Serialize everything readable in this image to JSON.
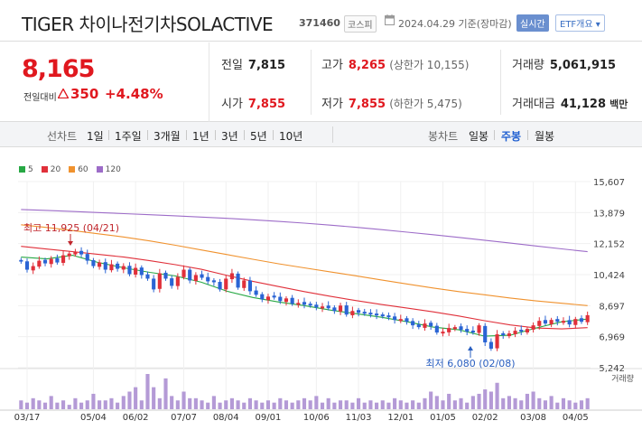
{
  "header": {
    "title": "TIGER 차이나전기차SOLACTIVE",
    "code": "371460",
    "market_badge": "코스피",
    "date_text": "2024.04.29 기준(장마감)",
    "realtime_button": "실시간",
    "etf_button": "ETF개요 ▾"
  },
  "price": {
    "current": "8,165",
    "change_label": "전일대비",
    "change_value": "350",
    "change_pct": "+4.48%"
  },
  "stats": {
    "prev_close": {
      "label": "전일",
      "value": "7,815"
    },
    "open": {
      "label": "시가",
      "value": "7,855"
    },
    "high": {
      "label": "고가",
      "value": "8,265",
      "sub": "(상한가 10,155)"
    },
    "low": {
      "label": "저가",
      "value": "7,855",
      "sub": "(하한가 5,475)"
    },
    "volume": {
      "label": "거래량",
      "value": "5,061,915"
    },
    "amount": {
      "label": "거래대금",
      "value": "41,128",
      "unit": "백만"
    }
  },
  "period_bar": {
    "line_label": "선차트",
    "line_options": [
      "1일",
      "1주일",
      "3개월",
      "1년",
      "3년",
      "5년",
      "10년"
    ],
    "candle_label": "봉차트",
    "candle_options": [
      "일봉",
      "주봉",
      "월봉"
    ],
    "active_candle": "주봉"
  },
  "legend": [
    {
      "label": "5",
      "color": "#27a844"
    },
    {
      "label": "20",
      "color": "#e0303a"
    },
    {
      "label": "60",
      "color": "#f0922e"
    },
    {
      "label": "120",
      "color": "#9d6cc8"
    }
  ],
  "chart_data": {
    "type": "candlestick",
    "y_ticks": [
      "15,607",
      "13,879",
      "12,152",
      "10,424",
      "8,697",
      "6,969",
      "5,242"
    ],
    "ylim": [
      5242,
      15607
    ],
    "x_ticks": [
      "03/17",
      "05/04",
      "06/02",
      "07/07",
      "08/04",
      "09/01",
      "10/06",
      "11/03",
      "12/01",
      "01/05",
      "02/02",
      "03/08",
      "04/05"
    ],
    "annotations": {
      "high": "최고 11,925 (04/21)",
      "low": "최저 6,080 (02/08)"
    },
    "volume_label": "거래량",
    "candles_close": [
      11150,
      10700,
      10900,
      11200,
      11050,
      11300,
      11100,
      11500,
      11600,
      11700,
      11550,
      11200,
      10900,
      11100,
      10700,
      11000,
      10750,
      10900,
      10450,
      10800,
      10400,
      10200,
      9600,
      10500,
      10200,
      9800,
      10300,
      10700,
      10100,
      10400,
      10250,
      10050,
      10000,
      9600,
      10200,
      10500,
      9700,
      10100,
      9500,
      9300,
      9050,
      9200,
      9150,
      8950,
      9100,
      8800,
      8850,
      8750,
      8700,
      8600,
      8650,
      8550,
      8400,
      8700,
      8200,
      8400,
      8300,
      8250,
      8200,
      8150,
      8100,
      8050,
      7900,
      7950,
      7800,
      7600,
      7500,
      7700,
      7550,
      7200,
      7250,
      7450,
      7500,
      7350,
      7250,
      7200,
      7600,
      6650,
      6300,
      7100,
      7050,
      7150,
      7300,
      7250,
      7400,
      7600,
      7850,
      7700,
      7900,
      7800,
      7850,
      7650,
      7950,
      7800,
      8165
    ],
    "candles_dir": [
      "d",
      "d",
      "u",
      "u",
      "d",
      "u",
      "d",
      "u",
      "u",
      "u",
      "d",
      "d",
      "d",
      "u",
      "d",
      "u",
      "d",
      "u",
      "d",
      "u",
      "d",
      "d",
      "d",
      "u",
      "d",
      "d",
      "u",
      "u",
      "d",
      "u",
      "d",
      "d",
      "d",
      "d",
      "u",
      "u",
      "d",
      "u",
      "d",
      "d",
      "d",
      "u",
      "d",
      "d",
      "u",
      "d",
      "u",
      "d",
      "d",
      "d",
      "u",
      "d",
      "d",
      "u",
      "d",
      "u",
      "d",
      "d",
      "d",
      "d",
      "d",
      "d",
      "d",
      "u",
      "d",
      "d",
      "d",
      "u",
      "d",
      "d",
      "u",
      "u",
      "u",
      "d",
      "d",
      "d",
      "u",
      "d",
      "d",
      "u",
      "d",
      "u",
      "u",
      "d",
      "u",
      "u",
      "u",
      "d",
      "u",
      "d",
      "u",
      "d",
      "u",
      "d",
      "u"
    ],
    "ma120": [
      14050,
      14000,
      13940,
      13880,
      13820,
      13760,
      13700,
      13630,
      13560,
      13480,
      13390,
      13290,
      13180,
      13060,
      12930,
      12790,
      12650,
      12500,
      12340,
      12180,
      12020,
      11860,
      11700
    ],
    "ma60": [
      13200,
      13050,
      12880,
      12700,
      12520,
      12300,
      12060,
      11800,
      11540,
      11280,
      11030,
      10800,
      10580,
      10360,
      10130,
      9900,
      9680,
      9480,
      9300,
      9120,
      8960,
      8830,
      8700
    ],
    "ma20": [
      12000,
      11850,
      11700,
      11550,
      11400,
      11200,
      10980,
      10720,
      10380,
      10050,
      9760,
      9480,
      9220,
      8980,
      8760,
      8560,
      8350,
      8120,
      7860,
      7620,
      7450,
      7400,
      7470
    ],
    "ma5": [
      11400,
      11300,
      11500,
      11100,
      10800,
      10550,
      10350,
      10000,
      9500,
      9150,
      8900,
      8700,
      8450,
      8250,
      8050,
      7800,
      7500,
      7350,
      7000,
      7050,
      7450,
      7800,
      7950
    ],
    "volume": [
      4,
      3,
      5,
      4,
      3,
      6,
      3,
      4,
      2,
      5,
      3,
      4,
      7,
      4,
      4,
      5,
      3,
      6,
      8,
      10,
      4,
      16,
      10,
      5,
      14,
      6,
      4,
      8,
      5,
      5,
      4,
      3,
      6,
      3,
      4,
      5,
      4,
      3,
      5,
      4,
      3,
      4,
      3,
      5,
      4,
      3,
      4,
      5,
      4,
      6,
      3,
      5,
      3,
      4,
      4,
      3,
      5,
      3,
      4,
      3,
      4,
      3,
      5,
      4,
      3,
      4,
      3,
      5,
      8,
      6,
      4,
      7,
      4,
      5,
      3,
      6,
      7,
      9,
      8,
      12,
      5,
      6,
      5,
      4,
      7,
      8,
      5,
      4,
      6,
      3,
      5,
      4,
      3,
      4,
      5
    ]
  }
}
